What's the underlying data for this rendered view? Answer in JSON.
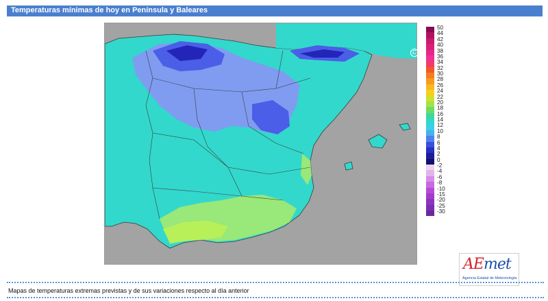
{
  "header": {
    "title": "Temperaturas mínimas de hoy en Península y Baleares"
  },
  "map": {
    "copyright": "Agencia Estatal de Meteorología",
    "logo": {
      "main_prefix": "AE",
      "main_suffix": "met",
      "sub": "Agencia Estatal de Meteorología"
    },
    "colors": {
      "sea": "#a3a3a3",
      "land_base": "#32d8cc",
      "cool": "#7f9cf0",
      "cold": "#4b5ee8",
      "coldest": "#2324b8",
      "warm": "#98e87a",
      "warmer": "#b8f05a",
      "border": "#3a3a3a"
    }
  },
  "legend": {
    "labels": [
      "50",
      "44",
      "42",
      "40",
      "38",
      "36",
      "34",
      "32",
      "30",
      "28",
      "26",
      "24",
      "22",
      "20",
      "18",
      "16",
      "14",
      "12",
      "10",
      "8",
      "6",
      "4",
      "2",
      "0",
      "-2",
      "-4",
      "-6",
      "-8",
      "-10",
      "-15",
      "-20",
      "-25",
      "-30"
    ],
    "colors": [
      "#8b0a50",
      "#b0135f",
      "#c81a6e",
      "#dc1f7a",
      "#e8268a",
      "#f0309a",
      "#f23b6c",
      "#f25a22",
      "#f37d1f",
      "#f79a1e",
      "#f7ba1e",
      "#f2d21f",
      "#cfe12b",
      "#a3e24a",
      "#6fdb60",
      "#3fd6a0",
      "#32d8cc",
      "#3ad0e8",
      "#4ab0ee",
      "#4d82ee",
      "#3a4fde",
      "#2a2fc2",
      "#1d1d9a",
      "#111170",
      "#efd2ef",
      "#e3b3ec",
      "#d58ee6",
      "#c66ae0",
      "#b74ad8",
      "#a13ccf",
      "#8c35c0",
      "#7a2fb0",
      "#68299e"
    ]
  },
  "footer": {
    "text": "Mapas de temperaturas extremas previstas y de sus variaciones respecto al día anterior"
  }
}
